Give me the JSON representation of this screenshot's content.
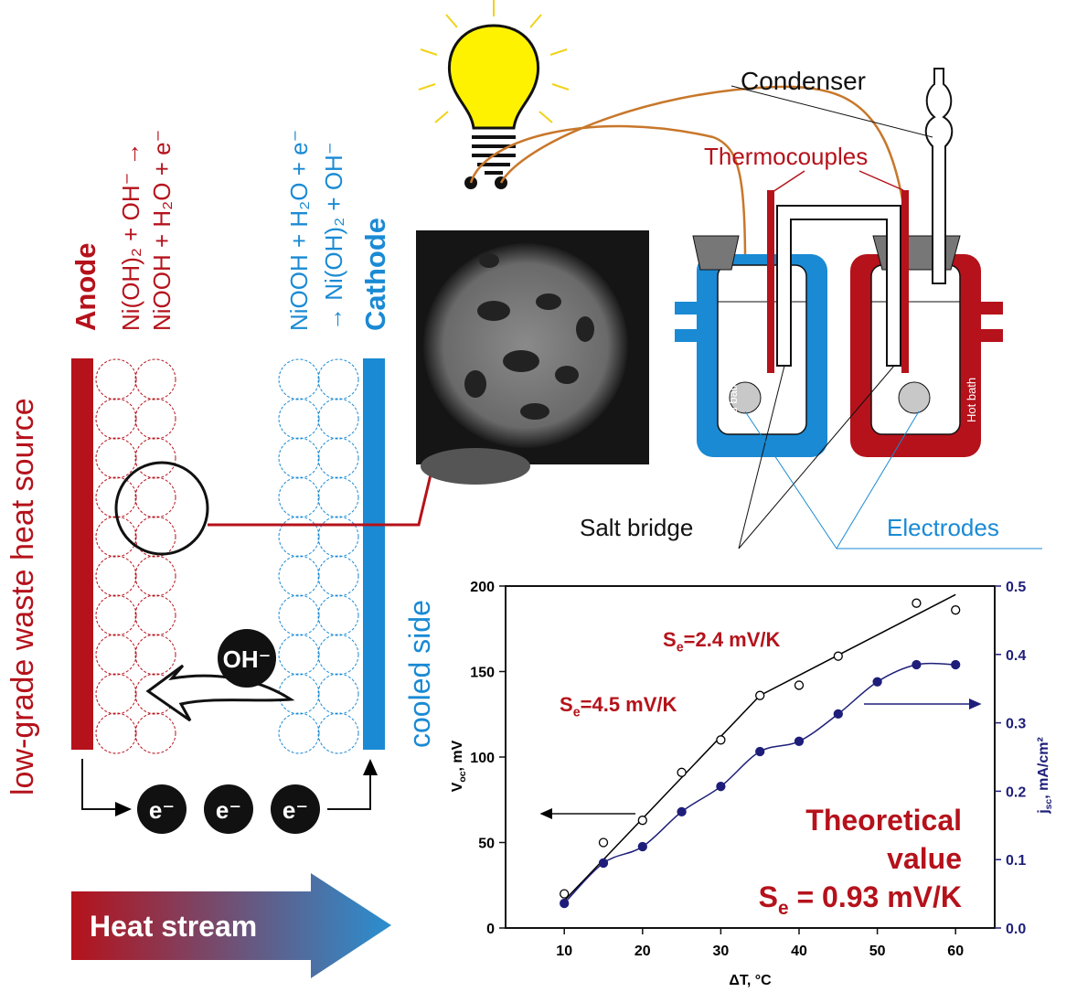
{
  "schematic": {
    "side_label": "low-grade waste heat source",
    "anode": "Anode",
    "anode_reaction": [
      "Ni(OH)₂ + OH⁻ →",
      "NiOOH + H₂O + e⁻"
    ],
    "cathode": "Cathode",
    "cathode_reaction": [
      "NiOOH + H₂O + e⁻",
      "→ Ni(OH)₂ + OH⁻"
    ],
    "cooled": "cooled side",
    "ion": "OH⁻",
    "electrons": [
      "e⁻",
      "e⁻",
      "e⁻"
    ],
    "heat": "Heat stream"
  },
  "apparatus": {
    "condenser": "Condenser",
    "thermocouples": "Thermocouples",
    "cold": "Cold bath",
    "hot": "Hot bath",
    "salt_bridge": "Salt bridge",
    "electrodes": "Electrodes"
  },
  "chart_data": {
    "type": "scatter",
    "x_label": "ΔT, °C",
    "y_label": {
      "main": "V",
      "sub": "oc",
      "post": ", mV"
    },
    "y2_label": {
      "main": "j",
      "sub": "sc",
      "post": ", mA/cm²"
    },
    "xlim": [
      2.5,
      65
    ],
    "xticks": [
      10,
      20,
      30,
      40,
      50,
      60
    ],
    "ylim": [
      0,
      200
    ],
    "yticks": [
      0,
      50,
      100,
      150,
      200
    ],
    "y2lim": [
      0,
      0.5
    ],
    "y2ticks": [
      {
        "value": 0,
        "label": "0.0"
      },
      0.1,
      0.2,
      0.3,
      0.4,
      0.5
    ],
    "series": [
      {
        "color": "#000000",
        "marker": "open",
        "x": [
          10,
          15,
          20,
          25,
          30,
          35,
          40,
          45,
          55,
          60
        ],
        "values": [
          20,
          50,
          63,
          91,
          110,
          136,
          142,
          159,
          190,
          186
        ]
      },
      {
        "color": "#1e1e7a",
        "marker": "filled",
        "axis": "y2",
        "x": [
          10,
          15,
          20,
          25,
          30,
          35,
          40,
          45,
          50,
          55,
          60
        ],
        "values": [
          0.036,
          0.095,
          0.119,
          0.17,
          0.207,
          0.258,
          0.273,
          0.313,
          0.36,
          0.385,
          0.385
        ]
      }
    ],
    "fits": [
      {
        "color": "#000000",
        "x": [
          10,
          35,
          60
        ],
        "values": [
          16,
          136,
          195
        ]
      }
    ],
    "annotations": [
      {
        "pre": "S",
        "sub": "e",
        "post": "=2.4 mV/K"
      },
      {
        "pre": "S",
        "sub": "e",
        "post": "=4.5 mV/K"
      }
    ],
    "theoretical": {
      "lines": [
        "Theoretical",
        "value"
      ],
      "pre": "S",
      "sub": "e",
      "post": " = 0.93 mV/K"
    }
  }
}
